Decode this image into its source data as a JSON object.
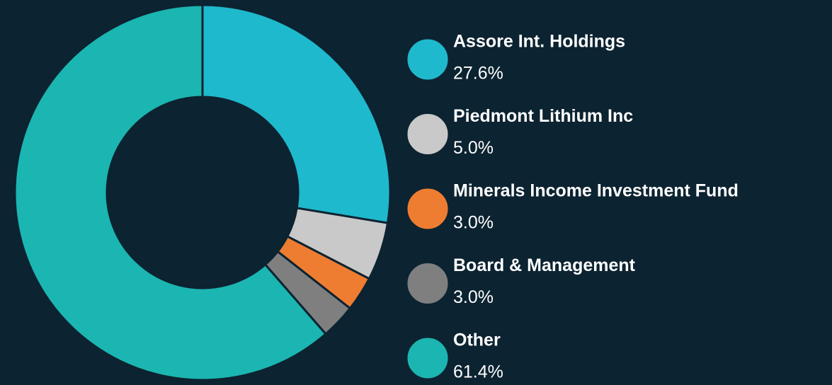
{
  "chart_data": {
    "type": "donut",
    "categories": [
      "Assore Int. Holdings",
      "Piedmont Lithium Inc",
      "Minerals Income Investment Fund",
      "Board & Management",
      "Other"
    ],
    "values": [
      27.6,
      5.0,
      3.0,
      3.0,
      61.4
    ],
    "value_labels": [
      "27.6%",
      "5.0%",
      "3.0%",
      "3.0%",
      "61.4%"
    ],
    "colors": [
      "#1fb9cd",
      "#c9c9c9",
      "#ee7d31",
      "#7f7f7f",
      "#1bb6b1"
    ],
    "legend": "right"
  }
}
